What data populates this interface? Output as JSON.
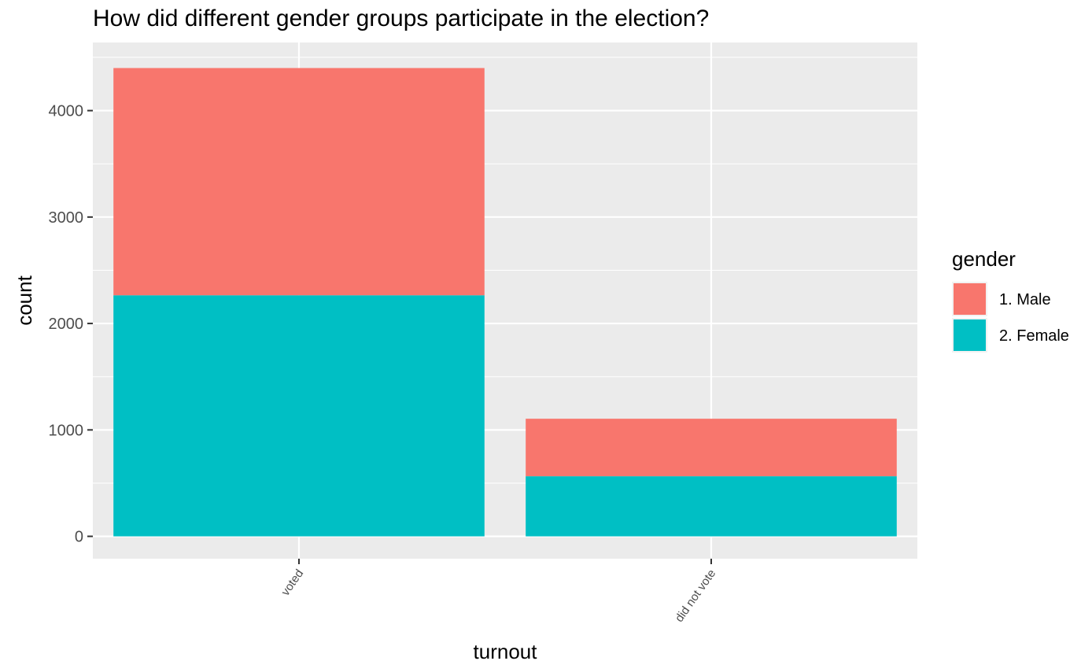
{
  "chart_data": {
    "type": "bar",
    "stacked": true,
    "title": "How did different gender groups participate in the election?",
    "xlabel": "turnout",
    "ylabel": "count",
    "categories": [
      "voted",
      "did not vote"
    ],
    "series": [
      {
        "name": "1. Male",
        "values": [
          2135,
          540
        ],
        "color": "#F8766D"
      },
      {
        "name": "2. Female",
        "values": [
          2265,
          565
        ],
        "color": "#00BFC4"
      }
    ],
    "ylim": [
      -210,
      4640
    ],
    "yticks": [
      0,
      1000,
      2000,
      3000,
      4000
    ],
    "ytick_labels": [
      "0",
      "1000",
      "2000",
      "3000",
      "4000"
    ],
    "grid": true,
    "legend": {
      "title": "gender",
      "position": "right"
    },
    "panel_background": "#EBEBEB"
  }
}
